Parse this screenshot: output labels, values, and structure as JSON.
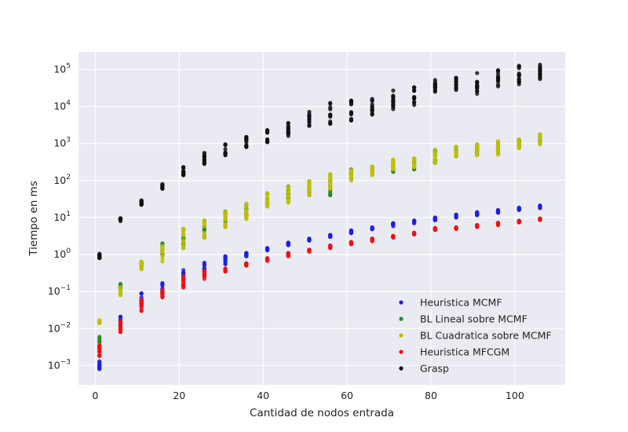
{
  "chart_data": {
    "type": "scatter",
    "title": "",
    "xlabel": "Cantidad de nodos entrada",
    "ylabel": "Tiempo en ms",
    "xlim": [
      -4,
      112
    ],
    "ylim": [
      0.0003,
      300000
    ],
    "yscale": "log",
    "grid": true,
    "legend_position": "lower-right",
    "x_ticks": [
      0,
      20,
      40,
      60,
      80,
      100
    ],
    "y_ticks": [
      {
        "value": 0.001,
        "base": "10",
        "exp": "−3"
      },
      {
        "value": 0.01,
        "base": "10",
        "exp": "−2"
      },
      {
        "value": 0.1,
        "base": "10",
        "exp": "−1"
      },
      {
        "value": 1,
        "base": "10",
        "exp": "0"
      },
      {
        "value": 10,
        "base": "10",
        "exp": "1"
      },
      {
        "value": 100,
        "base": "10",
        "exp": "2"
      },
      {
        "value": 1000,
        "base": "10",
        "exp": "3"
      },
      {
        "value": 10000,
        "base": "10",
        "exp": "4"
      },
      {
        "value": 100000,
        "base": "10",
        "exp": "5"
      }
    ],
    "x": [
      1,
      6,
      11,
      16,
      21,
      26,
      31,
      36,
      41,
      46,
      51,
      56,
      61,
      66,
      71,
      76,
      81,
      86,
      91,
      96,
      101,
      106
    ],
    "series": [
      {
        "name": "Heuristica MCMF",
        "color": "#1f1fe8",
        "min": [
          0.0008,
          0.012,
          0.04,
          0.08,
          0.2,
          0.3,
          0.55,
          0.9,
          1.3,
          1.8,
          2.4,
          3.0,
          3.8,
          4.8,
          5.8,
          7.0,
          8.5,
          10,
          11.5,
          13.5,
          16,
          18
        ],
        "max": [
          0.0013,
          0.021,
          0.09,
          0.17,
          0.38,
          0.6,
          0.9,
          1.1,
          1.5,
          2.1,
          2.7,
          3.4,
          4.5,
          5.4,
          7.0,
          8.3,
          10,
          12,
          14,
          16,
          18.5,
          21
        ]
      },
      {
        "name": "BL Lineal sobre MCMF",
        "color": "#2a8a2a",
        "min": [
          0.0025,
          0.1,
          0.5,
          1.0,
          1.5,
          3.0,
          6.0,
          10,
          22,
          30,
          40,
          40,
          110,
          150,
          170,
          200,
          300,
          450,
          500,
          550,
          800,
          1000
        ],
        "max": [
          0.006,
          0.16,
          0.6,
          2.0,
          4.5,
          8.0,
          14,
          22,
          45,
          70,
          95,
          140,
          200,
          230,
          350,
          380,
          650,
          800,
          900,
          1100,
          1250,
          1700
        ]
      },
      {
        "name": "BL Cuadratica sobre MCMF",
        "color": "#bfbf00",
        "min": [
          0.014,
          0.08,
          0.4,
          0.65,
          1.5,
          2.8,
          5.5,
          9.0,
          20,
          25,
          40,
          60,
          100,
          140,
          200,
          230,
          300,
          450,
          480,
          500,
          750,
          950
        ],
        "max": [
          0.017,
          0.13,
          0.65,
          1.7,
          5.0,
          8.5,
          15,
          24,
          45,
          68,
          95,
          150,
          190,
          240,
          370,
          400,
          680,
          830,
          950,
          1150,
          1300,
          1800
        ]
      },
      {
        "name": "Heuristica MFCGM",
        "color": "#f01010",
        "min": [
          0.0018,
          0.008,
          0.03,
          0.07,
          0.13,
          0.22,
          0.35,
          0.5,
          0.68,
          0.9,
          1.2,
          1.5,
          1.9,
          2.3,
          2.9,
          3.5,
          4.6,
          4.9,
          5.6,
          6.3,
          7.4,
          8.6
        ],
        "max": [
          0.0035,
          0.016,
          0.06,
          0.11,
          0.26,
          0.36,
          0.42,
          0.58,
          0.8,
          1.1,
          1.35,
          1.75,
          2.2,
          2.7,
          3.2,
          3.9,
          5.2,
          5.4,
          6.3,
          7.2,
          8.2,
          9.4
        ]
      },
      {
        "name": "Grasp",
        "color": "#111111",
        "min": [
          0.8,
          8.0,
          22,
          60,
          140,
          280,
          480,
          800,
          1100,
          1600,
          3000,
          3400,
          4200,
          6000,
          8500,
          11000,
          25000,
          28000,
          22000,
          35000,
          40000,
          55000
        ],
        "max": [
          1.05,
          9.5,
          29,
          80,
          230,
          560,
          950,
          1500,
          2300,
          3600,
          7200,
          12500,
          14500,
          16000,
          27000,
          33000,
          52000,
          60000,
          80000,
          95000,
          125000,
          135000
        ]
      }
    ]
  }
}
